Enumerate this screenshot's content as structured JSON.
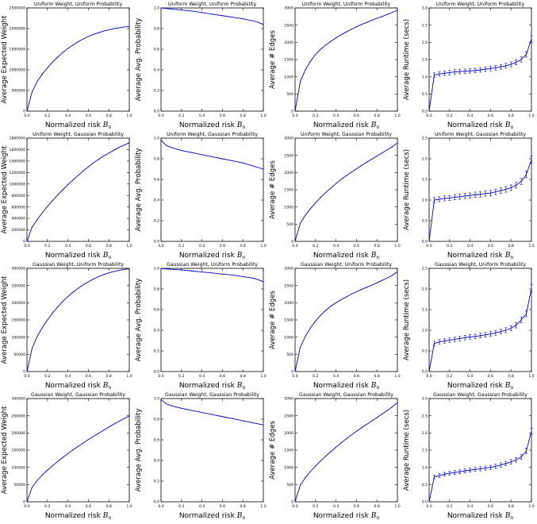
{
  "figure": {
    "row_titles": [
      "Uniform Weight, Uniform Probability",
      "Uniform Weight, Gaussian Probability",
      "Gaussian Weight, Uniform Probability",
      "Gaussian Weight, Gaussian Probability"
    ],
    "xlabel_prefix": "Normalized risk ",
    "xlabel_symbol": "B",
    "xlabel_sub": "n",
    "ylabels": [
      "Average Expected Weight",
      "Average Avg. Probability",
      "Average # Edges",
      "Average Runtime (secs)"
    ],
    "line_color": "#0000cc",
    "axis_color": "#000000"
  },
  "chart_data": [
    {
      "type": "line",
      "title": "Uniform Weight, Uniform Probability",
      "xlabel": "Normalized risk B_n",
      "ylabel": "Average Expected Weight",
      "xlim": [
        0.0,
        1.0
      ],
      "ylim": [
        0,
        2500000
      ],
      "xticks": [
        "0.0",
        "0.2",
        "0.4",
        "0.6",
        "0.8",
        "1.0"
      ],
      "yticks": [
        "0",
        "500000",
        "1000000",
        "1500000",
        "2000000",
        "2500000"
      ],
      "x": [
        0.0,
        0.05,
        0.1,
        0.15,
        0.2,
        0.25,
        0.3,
        0.35,
        0.4,
        0.45,
        0.5,
        0.55,
        0.6,
        0.65,
        0.7,
        0.75,
        0.8,
        0.85,
        0.9,
        0.95,
        1.0
      ],
      "y": [
        0,
        470000,
        720000,
        900000,
        1050000,
        1190000,
        1310000,
        1420000,
        1520000,
        1600000,
        1680000,
        1750000,
        1810000,
        1860000,
        1900000,
        1940000,
        1970000,
        2000000,
        2020000,
        2040000,
        2050000
      ]
    },
    {
      "type": "line",
      "title": "Uniform Weight, Uniform Probability",
      "xlabel": "Normalized risk B_n",
      "ylabel": "Average Avg. Probability",
      "xlim": [
        0.0,
        1.0
      ],
      "ylim": [
        0.0,
        1.0
      ],
      "xticks": [
        "0.0",
        "0.2",
        "0.4",
        "0.6",
        "0.8",
        "1.0"
      ],
      "yticks": [
        "0.0",
        "0.2",
        "0.4",
        "0.6",
        "0.8",
        "1.0"
      ],
      "x": [
        0.0,
        0.1,
        0.2,
        0.3,
        0.4,
        0.5,
        0.6,
        0.7,
        0.8,
        0.9,
        0.95,
        1.0
      ],
      "y": [
        1.0,
        0.99,
        0.98,
        0.97,
        0.955,
        0.94,
        0.925,
        0.91,
        0.895,
        0.875,
        0.86,
        0.84
      ]
    },
    {
      "type": "line",
      "title": "Uniform Weight, Uniform Probability",
      "xlabel": "Normalized risk B_n",
      "ylabel": "Average # Edges",
      "xlim": [
        0.0,
        1.0
      ],
      "ylim": [
        0,
        3000
      ],
      "xticks": [
        "0.0",
        "0.2",
        "0.4",
        "0.6",
        "0.8",
        "1.0"
      ],
      "yticks": [
        "0",
        "500",
        "1000",
        "1500",
        "2000",
        "2500",
        "3000"
      ],
      "x": [
        0.0,
        0.05,
        0.1,
        0.15,
        0.2,
        0.25,
        0.3,
        0.35,
        0.4,
        0.45,
        0.5,
        0.55,
        0.6,
        0.65,
        0.7,
        0.75,
        0.8,
        0.85,
        0.9,
        0.95,
        1.0
      ],
      "y": [
        0,
        850,
        1200,
        1450,
        1650,
        1800,
        1920,
        2030,
        2130,
        2220,
        2300,
        2380,
        2450,
        2520,
        2580,
        2640,
        2700,
        2750,
        2810,
        2870,
        2940
      ]
    },
    {
      "type": "line",
      "title": "Uniform Weight, Uniform Probability",
      "xlabel": "Normalized risk B_n",
      "ylabel": "Average Runtime (secs)",
      "xlim": [
        0.0,
        1.0
      ],
      "ylim": [
        0.0,
        3.0
      ],
      "xticks": [
        "0.0",
        "0.2",
        "0.4",
        "0.6",
        "0.8",
        "1.0"
      ],
      "yticks": [
        "0.0",
        "0.5",
        "1.0",
        "1.5",
        "2.0",
        "2.5",
        "3.0"
      ],
      "x": [
        0.0,
        0.05,
        0.1,
        0.15,
        0.2,
        0.25,
        0.3,
        0.35,
        0.4,
        0.45,
        0.5,
        0.55,
        0.6,
        0.65,
        0.7,
        0.75,
        0.8,
        0.85,
        0.9,
        0.95,
        1.0
      ],
      "y": [
        0.0,
        1.05,
        1.08,
        1.1,
        1.12,
        1.14,
        1.15,
        1.16,
        1.17,
        1.18,
        1.2,
        1.22,
        1.24,
        1.26,
        1.29,
        1.32,
        1.36,
        1.42,
        1.5,
        1.65,
        2.1
      ]
    },
    {
      "type": "line",
      "title": "Uniform Weight, Gaussian Probability",
      "xlabel": "Normalized risk B_n",
      "ylabel": "Average Expected Weight",
      "xlim": [
        0.0,
        1.0
      ],
      "ylim": [
        0,
        1800000
      ],
      "xticks": [
        "0.0",
        "0.2",
        "0.4",
        "0.6",
        "0.8",
        "1.0"
      ],
      "yticks": [
        "0",
        "200000",
        "400000",
        "600000",
        "800000",
        "1000000",
        "1200000",
        "1400000",
        "1600000",
        "1800000"
      ],
      "x": [
        0.0,
        0.05,
        0.1,
        0.15,
        0.2,
        0.25,
        0.3,
        0.35,
        0.4,
        0.45,
        0.5,
        0.55,
        0.6,
        0.65,
        0.7,
        0.75,
        0.8,
        0.85,
        0.9,
        0.95,
        1.0
      ],
      "y": [
        0,
        250000,
        380000,
        500000,
        610000,
        710000,
        810000,
        900000,
        990000,
        1070000,
        1150000,
        1230000,
        1300000,
        1370000,
        1430000,
        1490000,
        1540000,
        1590000,
        1640000,
        1680000,
        1720000
      ]
    },
    {
      "type": "line",
      "title": "Uniform Weight, Gaussian Probability",
      "xlabel": "Normalized risk B_n",
      "ylabel": "Average Avg. Probability",
      "xlim": [
        0.0,
        1.0
      ],
      "ylim": [
        0.0,
        1.0
      ],
      "xticks": [
        "0.0",
        "0.2",
        "0.4",
        "0.6",
        "0.8",
        "1.0"
      ],
      "yticks": [
        "0.0",
        "0.2",
        "0.4",
        "0.6",
        "0.8",
        "1.0"
      ],
      "x": [
        0.0,
        0.05,
        0.1,
        0.2,
        0.3,
        0.4,
        0.5,
        0.6,
        0.7,
        0.8,
        0.9,
        1.0
      ],
      "y": [
        0.98,
        0.93,
        0.91,
        0.88,
        0.86,
        0.84,
        0.82,
        0.8,
        0.78,
        0.76,
        0.73,
        0.7
      ]
    },
    {
      "type": "line",
      "title": "Uniform Weight, Gaussian Probability",
      "xlabel": "Normalized risk B_n",
      "ylabel": "Average # Edges",
      "xlim": [
        0.0,
        1.0
      ],
      "ylim": [
        0,
        3000
      ],
      "xticks": [
        "0.0",
        "0.2",
        "0.4",
        "0.6",
        "0.8",
        "1.0"
      ],
      "yticks": [
        "0",
        "500",
        "1000",
        "1500",
        "2000",
        "2500",
        "3000"
      ],
      "x": [
        0.0,
        0.05,
        0.1,
        0.15,
        0.2,
        0.25,
        0.3,
        0.35,
        0.4,
        0.45,
        0.5,
        0.55,
        0.6,
        0.65,
        0.7,
        0.75,
        0.8,
        0.85,
        0.9,
        0.95,
        1.0
      ],
      "y": [
        0,
        520,
        760,
        950,
        1120,
        1280,
        1420,
        1550,
        1680,
        1800,
        1910,
        2010,
        2110,
        2210,
        2300,
        2390,
        2480,
        2570,
        2660,
        2750,
        2860
      ]
    },
    {
      "type": "line",
      "title": "Uniform Weight, Gaussian Probability",
      "xlabel": "Normalized risk B_n",
      "ylabel": "Average Runtime (secs)",
      "xlim": [
        0.0,
        1.0
      ],
      "ylim": [
        0.0,
        2.5
      ],
      "xticks": [
        "0.0",
        "0.2",
        "0.4",
        "0.6",
        "0.8",
        "1.0"
      ],
      "yticks": [
        "0.0",
        "0.5",
        "1.0",
        "1.5",
        "2.0",
        "2.5"
      ],
      "x": [
        0.0,
        0.05,
        0.1,
        0.15,
        0.2,
        0.25,
        0.3,
        0.35,
        0.4,
        0.45,
        0.5,
        0.55,
        0.6,
        0.65,
        0.7,
        0.75,
        0.8,
        0.85,
        0.9,
        0.95,
        1.0
      ],
      "y": [
        0.0,
        1.0,
        1.02,
        1.04,
        1.05,
        1.07,
        1.08,
        1.1,
        1.11,
        1.13,
        1.14,
        1.16,
        1.17,
        1.2,
        1.23,
        1.26,
        1.3,
        1.36,
        1.45,
        1.62,
        1.98
      ]
    },
    {
      "type": "line",
      "title": "Gaussian Weight, Uniform Probability",
      "xlabel": "Normalized risk B_n",
      "ylabel": "Average Expected Weight",
      "xlim": [
        0.0,
        1.0
      ],
      "ylim": [
        0,
        300000
      ],
      "xticks": [
        "0.0",
        "0.2",
        "0.4",
        "0.6",
        "0.8",
        "1.0"
      ],
      "yticks": [
        "0",
        "50000",
        "100000",
        "150000",
        "200000",
        "250000",
        "300000"
      ],
      "x": [
        0.0,
        0.05,
        0.1,
        0.15,
        0.2,
        0.25,
        0.3,
        0.35,
        0.4,
        0.45,
        0.5,
        0.55,
        0.6,
        0.65,
        0.7,
        0.75,
        0.8,
        0.85,
        0.9,
        0.95,
        1.0
      ],
      "y": [
        0,
        68000,
        102000,
        128000,
        150000,
        170000,
        188000,
        204000,
        218000,
        231000,
        242000,
        252000,
        261000,
        269000,
        276000,
        282000,
        287000,
        291000,
        294000,
        297000,
        299000
      ]
    },
    {
      "type": "line",
      "title": "Gaussian Weight, Uniform Probability",
      "xlabel": "Normalized risk B_n",
      "ylabel": "Average Avg. Probability",
      "xlim": [
        0.0,
        1.0
      ],
      "ylim": [
        0.0,
        1.0
      ],
      "xticks": [
        "0.0",
        "0.2",
        "0.4",
        "0.6",
        "0.8",
        "1.0"
      ],
      "yticks": [
        "0.0",
        "0.2",
        "0.4",
        "0.6",
        "0.8",
        "1.0"
      ],
      "x": [
        0.0,
        0.1,
        0.2,
        0.3,
        0.4,
        0.5,
        0.6,
        0.7,
        0.8,
        0.9,
        0.95,
        1.0
      ],
      "y": [
        1.0,
        0.99,
        0.985,
        0.975,
        0.965,
        0.955,
        0.945,
        0.935,
        0.92,
        0.905,
        0.89,
        0.87
      ]
    },
    {
      "type": "line",
      "title": "Gaussian Weight, Uniform Probability",
      "xlabel": "Normalized risk B_n",
      "ylabel": "Average # Edges",
      "xlim": [
        0.0,
        1.0
      ],
      "ylim": [
        0,
        3000
      ],
      "xticks": [
        "0.0",
        "0.2",
        "0.4",
        "0.6",
        "0.8",
        "1.0"
      ],
      "yticks": [
        "0",
        "500",
        "1000",
        "1500",
        "2000",
        "2500",
        "3000"
      ],
      "x": [
        0.0,
        0.05,
        0.1,
        0.15,
        0.2,
        0.25,
        0.3,
        0.35,
        0.4,
        0.45,
        0.5,
        0.55,
        0.6,
        0.65,
        0.7,
        0.75,
        0.8,
        0.85,
        0.9,
        0.95,
        1.0
      ],
      "y": [
        0,
        700,
        1020,
        1270,
        1470,
        1640,
        1780,
        1900,
        2000,
        2090,
        2170,
        2250,
        2320,
        2390,
        2450,
        2510,
        2580,
        2650,
        2720,
        2800,
        2900
      ]
    },
    {
      "type": "line",
      "title": "Gaussian Weight, Uniform Probability",
      "xlabel": "Normalized risk B_n",
      "ylabel": "Average Runtime (secs)",
      "xlim": [
        0.0,
        1.0
      ],
      "ylim": [
        0.0,
        2.5
      ],
      "xticks": [
        "0.0",
        "0.2",
        "0.4",
        "0.6",
        "0.8",
        "1.0"
      ],
      "yticks": [
        "0.0",
        "0.5",
        "1.0",
        "1.5",
        "2.0",
        "2.5"
      ],
      "x": [
        0.0,
        0.05,
        0.1,
        0.15,
        0.2,
        0.25,
        0.3,
        0.35,
        0.4,
        0.45,
        0.5,
        0.55,
        0.6,
        0.65,
        0.7,
        0.75,
        0.8,
        0.85,
        0.9,
        0.95,
        1.0
      ],
      "y": [
        0.0,
        0.68,
        0.72,
        0.74,
        0.76,
        0.78,
        0.8,
        0.82,
        0.84,
        0.85,
        0.87,
        0.89,
        0.91,
        0.94,
        0.97,
        1.0,
        1.05,
        1.12,
        1.25,
        1.4,
        2.02
      ]
    },
    {
      "type": "line",
      "title": "Gaussian Weight, Gaussian Probability",
      "xlabel": "Normalized risk B_n",
      "ylabel": "Average Expected Weight",
      "xlim": [
        0.0,
        1.0
      ],
      "ylim": [
        0,
        300000
      ],
      "xticks": [
        "0.0",
        "0.2",
        "0.4",
        "0.6",
        "0.8",
        "1.0"
      ],
      "yticks": [
        "0",
        "50000",
        "100000",
        "150000",
        "200000",
        "250000",
        "300000"
      ],
      "x": [
        0.0,
        0.05,
        0.1,
        0.15,
        0.2,
        0.25,
        0.3,
        0.35,
        0.4,
        0.45,
        0.5,
        0.55,
        0.6,
        0.65,
        0.7,
        0.75,
        0.8,
        0.85,
        0.9,
        0.95,
        1.0
      ],
      "y": [
        0,
        42000,
        62000,
        78000,
        92000,
        105000,
        117000,
        129000,
        140000,
        151000,
        161000,
        171000,
        181000,
        190000,
        199000,
        208000,
        217000,
        226000,
        234000,
        242000,
        250000
      ]
    },
    {
      "type": "line",
      "title": "Gaussian Weight, Gaussian Probability",
      "xlabel": "Normalized risk B_n",
      "ylabel": "Average Avg. Probability",
      "xlim": [
        0.0,
        1.0
      ],
      "ylim": [
        0.0,
        1.0
      ],
      "xticks": [
        "0.0",
        "0.2",
        "0.4",
        "0.6",
        "0.8",
        "1.0"
      ],
      "yticks": [
        "0.0",
        "0.2",
        "0.4",
        "0.6",
        "0.8",
        "1.0"
      ],
      "x": [
        0.0,
        0.05,
        0.1,
        0.2,
        0.3,
        0.4,
        0.5,
        0.6,
        0.7,
        0.8,
        0.9,
        1.0
      ],
      "y": [
        0.99,
        0.95,
        0.93,
        0.905,
        0.885,
        0.865,
        0.845,
        0.825,
        0.805,
        0.785,
        0.765,
        0.745
      ]
    },
    {
      "type": "line",
      "title": "Gaussian Weight, Gaussian Probability",
      "xlabel": "Normalized risk B_n",
      "ylabel": "Average # Edges",
      "xlim": [
        0.0,
        1.0
      ],
      "ylim": [
        0,
        3000
      ],
      "xticks": [
        "0.0",
        "0.2",
        "0.4",
        "0.6",
        "0.8",
        "1.0"
      ],
      "yticks": [
        "0",
        "500",
        "1000",
        "1500",
        "2000",
        "2500",
        "3000"
      ],
      "x": [
        0.0,
        0.05,
        0.1,
        0.15,
        0.2,
        0.25,
        0.3,
        0.35,
        0.4,
        0.45,
        0.5,
        0.55,
        0.6,
        0.65,
        0.7,
        0.75,
        0.8,
        0.85,
        0.9,
        0.95,
        1.0
      ],
      "y": [
        0,
        480,
        700,
        880,
        1040,
        1190,
        1330,
        1460,
        1590,
        1710,
        1830,
        1940,
        2050,
        2150,
        2250,
        2350,
        2450,
        2550,
        2650,
        2760,
        2880
      ]
    },
    {
      "type": "line",
      "title": "Gaussian Weight, Gaussian Probability",
      "xlabel": "Normalized risk B_n",
      "ylabel": "Average Runtime (secs)",
      "xlim": [
        0.0,
        1.0
      ],
      "ylim": [
        0.0,
        3.0
      ],
      "xticks": [
        "0.0",
        "0.2",
        "0.4",
        "0.6",
        "0.8",
        "1.0"
      ],
      "yticks": [
        "0.0",
        "0.5",
        "1.0",
        "1.5",
        "2.0",
        "2.5",
        "3.0"
      ],
      "x": [
        0.0,
        0.05,
        0.1,
        0.15,
        0.2,
        0.25,
        0.3,
        0.35,
        0.4,
        0.45,
        0.5,
        0.55,
        0.6,
        0.65,
        0.7,
        0.75,
        0.8,
        0.85,
        0.9,
        0.95,
        1.0
      ],
      "y": [
        0.0,
        0.72,
        0.76,
        0.8,
        0.83,
        0.85,
        0.87,
        0.9,
        0.92,
        0.94,
        0.96,
        0.98,
        1.0,
        1.03,
        1.07,
        1.11,
        1.16,
        1.22,
        1.3,
        1.48,
        2.05
      ]
    }
  ]
}
